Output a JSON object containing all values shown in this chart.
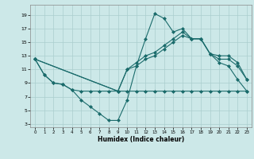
{
  "xlabel": "Humidex (Indice chaleur)",
  "bg_color": "#cce8e8",
  "line_color": "#1a6b6b",
  "grid_color": "#aacece",
  "xlim": [
    -0.5,
    23.5
  ],
  "ylim": [
    2.5,
    20.5
  ],
  "yticks": [
    3,
    5,
    7,
    9,
    11,
    13,
    15,
    17,
    19
  ],
  "xticks": [
    0,
    1,
    2,
    3,
    4,
    5,
    6,
    7,
    8,
    9,
    10,
    11,
    12,
    13,
    14,
    15,
    16,
    17,
    18,
    19,
    20,
    21,
    22,
    23
  ],
  "line1_x": [
    0,
    1,
    2,
    3,
    4,
    5,
    6,
    7,
    8,
    9,
    10,
    11,
    12,
    13,
    14,
    15,
    16,
    17,
    18,
    19,
    20,
    21,
    22,
    23
  ],
  "line1_y": [
    12.5,
    10.2,
    9.0,
    8.8,
    8.0,
    7.8,
    7.8,
    7.8,
    7.8,
    7.8,
    7.8,
    7.8,
    7.8,
    7.8,
    7.8,
    7.8,
    7.8,
    7.8,
    7.8,
    7.8,
    7.8,
    7.8,
    7.8,
    7.8
  ],
  "line2_x": [
    0,
    1,
    2,
    3,
    4,
    5,
    6,
    7,
    8,
    9,
    10,
    11,
    12,
    13,
    14,
    15,
    16,
    17,
    18,
    19,
    20,
    21,
    22,
    23
  ],
  "line2_y": [
    12.5,
    10.2,
    9.0,
    8.8,
    8.0,
    6.5,
    5.5,
    4.5,
    3.5,
    3.5,
    6.5,
    11.5,
    15.5,
    19.2,
    18.5,
    16.5,
    17.0,
    15.5,
    15.5,
    13.3,
    12.0,
    11.5,
    9.5,
    7.8
  ],
  "line3_x": [
    0,
    9,
    10,
    11,
    12,
    13,
    14,
    15,
    16,
    17,
    18,
    19,
    20,
    21,
    22,
    23
  ],
  "line3_y": [
    12.5,
    7.8,
    11.0,
    12.0,
    13.0,
    13.5,
    14.5,
    15.5,
    16.5,
    15.5,
    15.5,
    13.3,
    13.0,
    13.0,
    12.0,
    9.5
  ],
  "line4_x": [
    0,
    9,
    10,
    11,
    12,
    13,
    14,
    15,
    16,
    17,
    18,
    19,
    20,
    21,
    22,
    23
  ],
  "line4_y": [
    12.5,
    7.8,
    11.0,
    11.5,
    12.5,
    13.0,
    14.0,
    15.0,
    16.0,
    15.5,
    15.5,
    13.3,
    12.5,
    12.5,
    11.5,
    9.5
  ]
}
